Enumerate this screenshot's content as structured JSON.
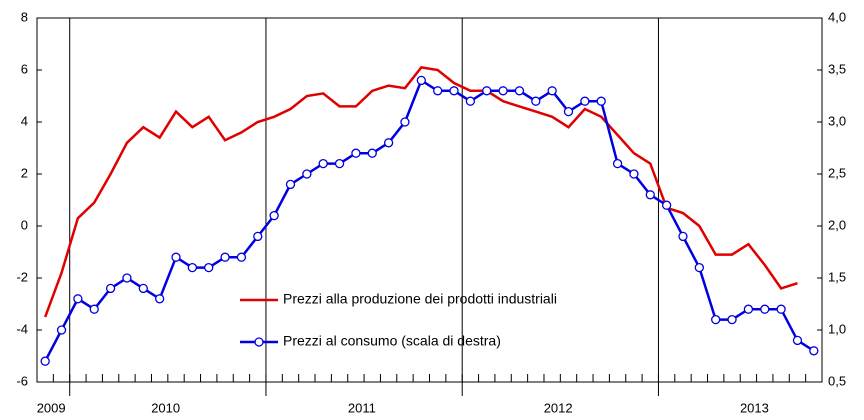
{
  "chart_data": {
    "type": "line",
    "categories": [
      "2009",
      null,
      null,
      null,
      null,
      null,
      null,
      "2010",
      null,
      null,
      null,
      null,
      null,
      null,
      null,
      null,
      null,
      null,
      null,
      "2011",
      null,
      null,
      null,
      null,
      null,
      null,
      null,
      null,
      null,
      null,
      null,
      "2012",
      null,
      null,
      null,
      null,
      null,
      null,
      null,
      null,
      null,
      null,
      null,
      "2013",
      null,
      null,
      null,
      null
    ],
    "series": [
      {
        "name": "Prezzi alla produzione dei prodotti industriali",
        "color": "#e00000",
        "axis": "y",
        "values": [
          -3.5,
          -1.8,
          0.3,
          0.9,
          2.0,
          3.2,
          3.8,
          3.4,
          4.4,
          3.8,
          4.2,
          3.3,
          3.6,
          4.0,
          4.2,
          4.5,
          5.0,
          5.1,
          4.6,
          4.6,
          5.2,
          5.4,
          5.3,
          6.1,
          6.0,
          5.5,
          5.2,
          5.2,
          4.8,
          4.6,
          4.4,
          4.2,
          3.8,
          4.5,
          4.2,
          3.5,
          2.8,
          2.4,
          0.7,
          0.5,
          0.0,
          -1.1,
          -1.1,
          -0.7,
          -1.5,
          -2.4,
          -2.2,
          null
        ]
      },
      {
        "name": "Prezzi al consumo (scala di destra)",
        "color": "#0000e0",
        "axis": "y2",
        "values": [
          0.7,
          1.0,
          1.3,
          1.2,
          1.4,
          1.5,
          1.4,
          1.3,
          1.7,
          1.6,
          1.6,
          1.7,
          1.7,
          1.9,
          2.1,
          2.4,
          2.5,
          2.6,
          2.6,
          2.7,
          2.7,
          2.8,
          3.0,
          3.4,
          3.3,
          3.3,
          3.2,
          3.3,
          3.3,
          3.3,
          3.2,
          3.3,
          3.1,
          3.2,
          3.2,
          2.6,
          2.5,
          2.3,
          2.2,
          1.9,
          1.6,
          1.1,
          1.1,
          1.2,
          1.2,
          1.2,
          0.9,
          0.8
        ]
      }
    ],
    "ylim": [
      -6,
      8
    ],
    "yticks": [
      -6,
      -4,
      -2,
      0,
      2,
      4,
      6,
      8
    ],
    "y2lim": [
      0.5,
      4.0
    ],
    "y2ticks": [
      {
        "value": 0.5,
        "label": "0,5"
      },
      {
        "value": 1.0,
        "label": "1,0"
      },
      {
        "value": 1.5,
        "label": "1,5"
      },
      {
        "value": 2.0,
        "label": "2,0"
      },
      {
        "value": 2.5,
        "label": "2,5"
      },
      {
        "value": 3.0,
        "label": "3,0"
      },
      {
        "value": 3.5,
        "label": "3,5"
      },
      {
        "value": 4.0,
        "label": "4,0"
      }
    ],
    "legend": "lower-center"
  }
}
